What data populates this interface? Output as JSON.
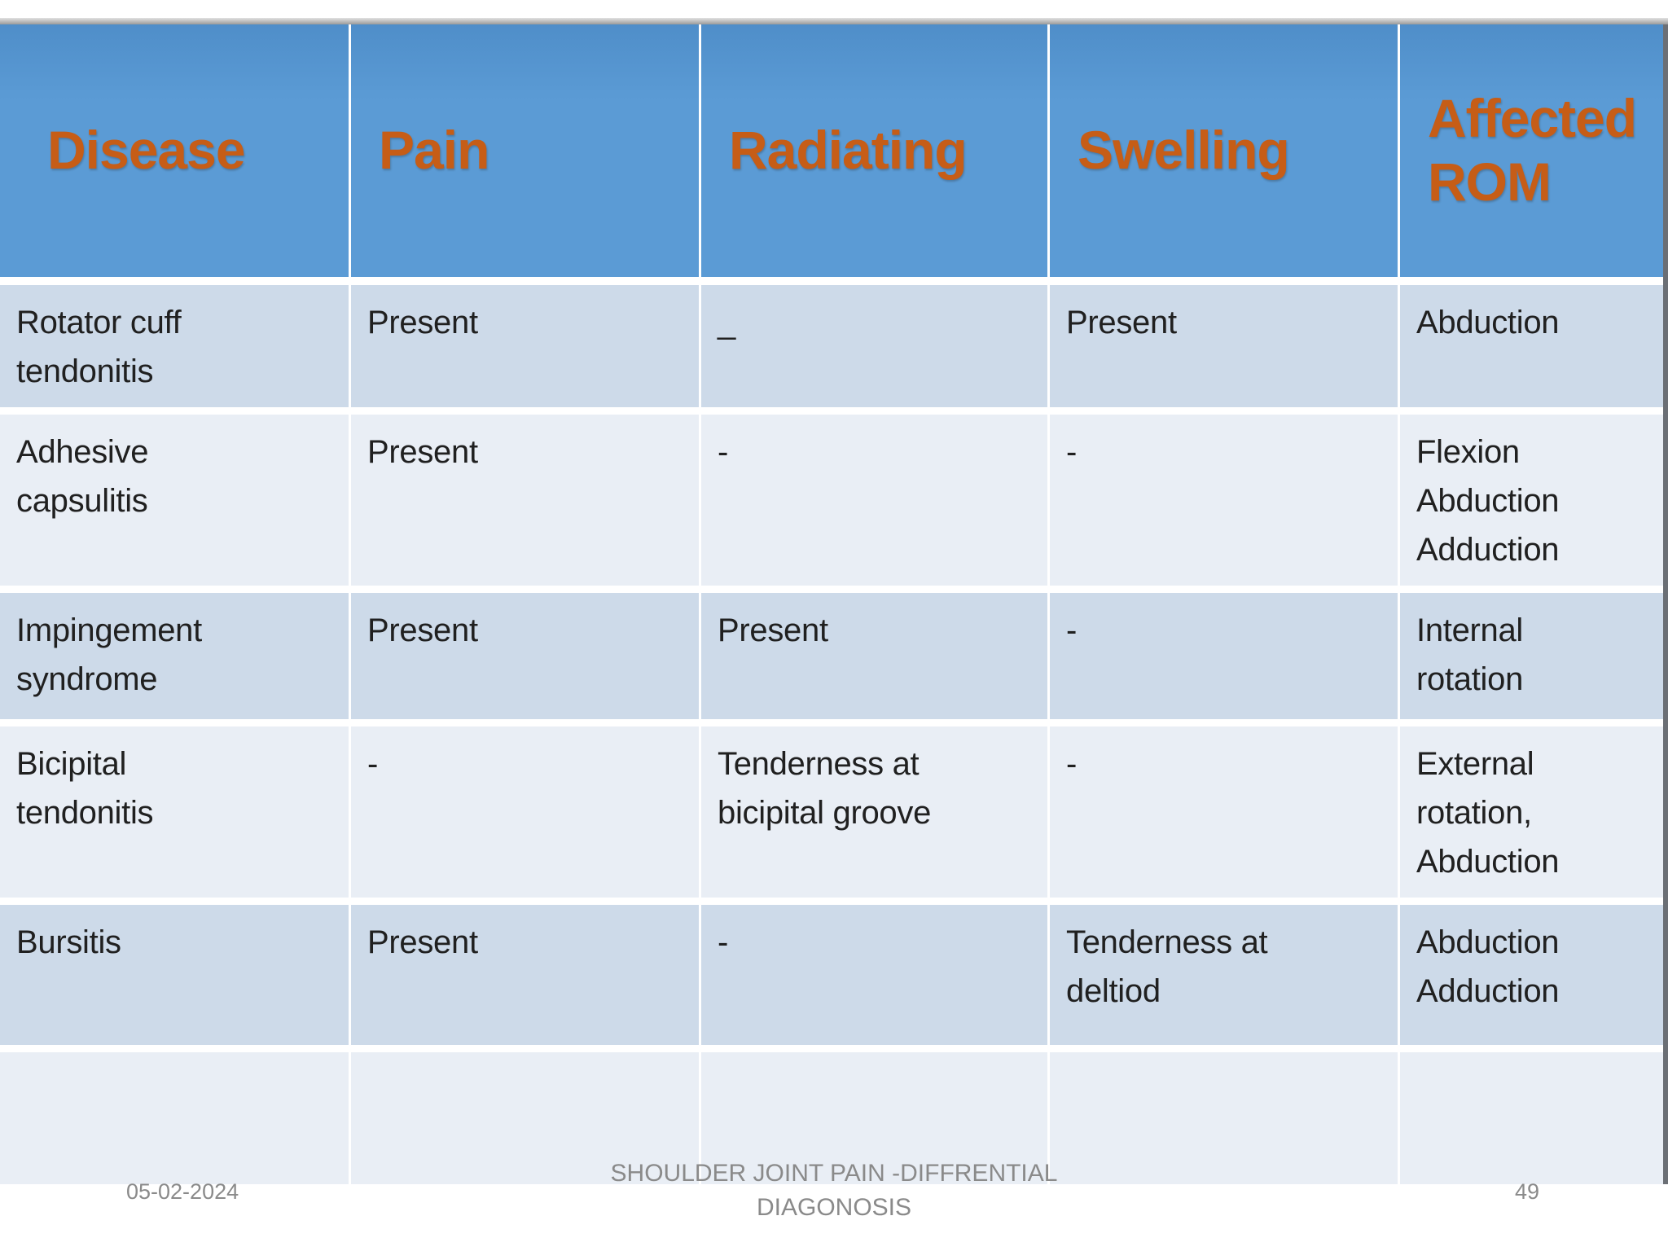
{
  "slide": {
    "table": {
      "columns": [
        "Disease",
        "Pain",
        "Radiating",
        "Swelling",
        "Affected ROM"
      ],
      "rows": [
        {
          "cells": [
            "Rotator cuff\ntendonitis",
            "Present",
            "_",
            "Present",
            "Abduction"
          ]
        },
        {
          "cells": [
            "Adhesive\ncapsulitis",
            "Present",
            "-",
            "-",
            "Flexion\nAbduction\nAdduction"
          ]
        },
        {
          "cells": [
            "Impingement\nsyndrome",
            "Present",
            "Present",
            "-",
            "Internal\nrotation"
          ]
        },
        {
          "cells": [
            "Bicipital\ntendonitis",
            "-",
            "Tenderness at\nbicipital groove",
            "-",
            "External\nrotation,\nAbduction"
          ]
        },
        {
          "cells": [
            "Bursitis",
            "Present",
            "-",
            "Tenderness at\ndeltiod",
            "Abduction\nAdduction"
          ]
        },
        {
          "cells": [
            "",
            "",
            "",
            "",
            ""
          ]
        }
      ]
    },
    "footer": {
      "date": "05-02-2024",
      "title": "SHOULDER JOINT PAIN -DIFFRENTIAL DIAGONOSIS",
      "page_number": "49"
    },
    "colors": {
      "header_bg": "#5B9BD5",
      "header_text": "#C65D17",
      "row_band_dark": "#CDDAE9",
      "row_band_light": "#E9EEF5",
      "body_text": "#202020",
      "footer_text": "#8A8A8A"
    }
  }
}
